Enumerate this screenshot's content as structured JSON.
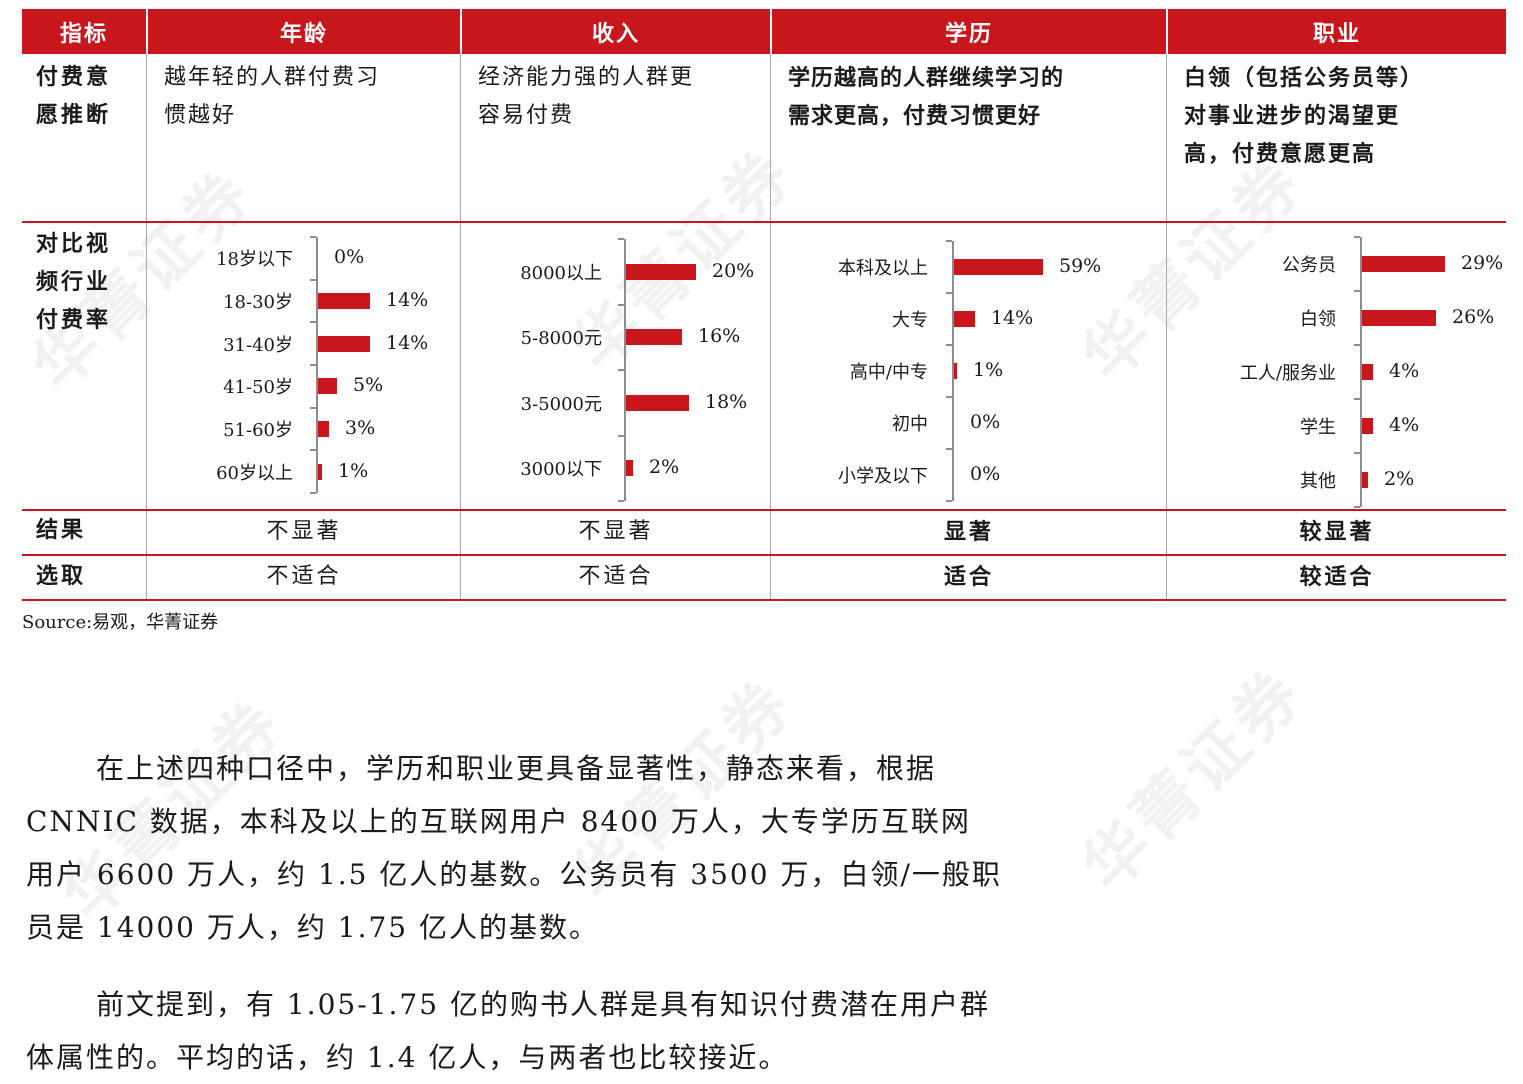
{
  "table": {
    "headers": [
      "指标",
      "年龄",
      "收入",
      "学历",
      "职业"
    ],
    "row_labels": {
      "inference": [
        "付费意",
        "愿推断"
      ],
      "rate": [
        "对比视",
        "频行业",
        "付费率"
      ],
      "result": "结果",
      "choice": "选取"
    },
    "inference": [
      [
        "越年轻的人群付费习",
        "惯越好"
      ],
      [
        "经济能力强的人群更",
        "容易付费"
      ],
      [
        "学历越高的人群继续学习的",
        "需求更高，付费习惯更好"
      ],
      [
        "白领（包括公务员等）",
        "对事业进步的渴望更",
        "高，付费意愿更高"
      ]
    ],
    "result": [
      "不显著",
      "不显著",
      "显著",
      "较显著"
    ],
    "choice": [
      "不适合",
      "不适合",
      "适合",
      "较适合"
    ]
  },
  "chart_data": [
    {
      "type": "bar",
      "orientation": "horizontal",
      "categories": [
        "18岁以下",
        "18-30岁",
        "31-40岁",
        "41-50岁",
        "51-60岁",
        "60岁以上"
      ],
      "values": [
        0,
        14,
        14,
        5,
        3,
        1
      ],
      "labels": [
        "0%",
        "14%",
        "14%",
        "5%",
        "3%",
        "1%"
      ],
      "xlim": [
        0,
        60
      ],
      "color": "#c8161d"
    },
    {
      "type": "bar",
      "orientation": "horizontal",
      "categories": [
        "8000以上",
        "5-8000元",
        "3-5000元",
        "3000以下"
      ],
      "values": [
        20,
        16,
        18,
        2
      ],
      "labels": [
        "20%",
        "16%",
        "18%",
        "2%"
      ],
      "xlim": [
        0,
        60
      ],
      "color": "#c8161d"
    },
    {
      "type": "bar",
      "orientation": "horizontal",
      "categories": [
        "本科及以上",
        "大专",
        "高中/中专",
        "初中",
        "小学及以下"
      ],
      "values": [
        59,
        14,
        1,
        0,
        0
      ],
      "labels": [
        "59%",
        "14%",
        "1%",
        "0%",
        "0%"
      ],
      "xlim": [
        0,
        63
      ],
      "color": "#c8161d"
    },
    {
      "type": "bar",
      "orientation": "horizontal",
      "categories": [
        "公务员",
        "白领",
        "工人/服务业",
        "学生",
        "其他"
      ],
      "values": [
        29,
        26,
        4,
        4,
        2
      ],
      "labels": [
        "29%",
        "26%",
        "4%",
        "4%",
        "2%"
      ],
      "xlim": [
        0,
        33
      ],
      "color": "#c8161d"
    }
  ],
  "source": "Source:易观，华菁证券",
  "watermark": "华菁证券",
  "paragraphs": [
    [
      "在上述四种口径中，学历和职业更具备显著性，静态来看，根据",
      "CNNIC 数据，本科及以上的互联网用户 8400 万人，大专学历互联网",
      "用户 6600 万人，约 1.5 亿人的基数。公务员有 3500 万，白领/一般职",
      "员是 14000 万人，约 1.75 亿人的基数。"
    ],
    [
      "前文提到，有 1.05-1.75 亿的购书人群是具有知识付费潜在用户群",
      "体属性的。平均的话，约 1.4 亿人，与两者也比较接近。"
    ]
  ]
}
